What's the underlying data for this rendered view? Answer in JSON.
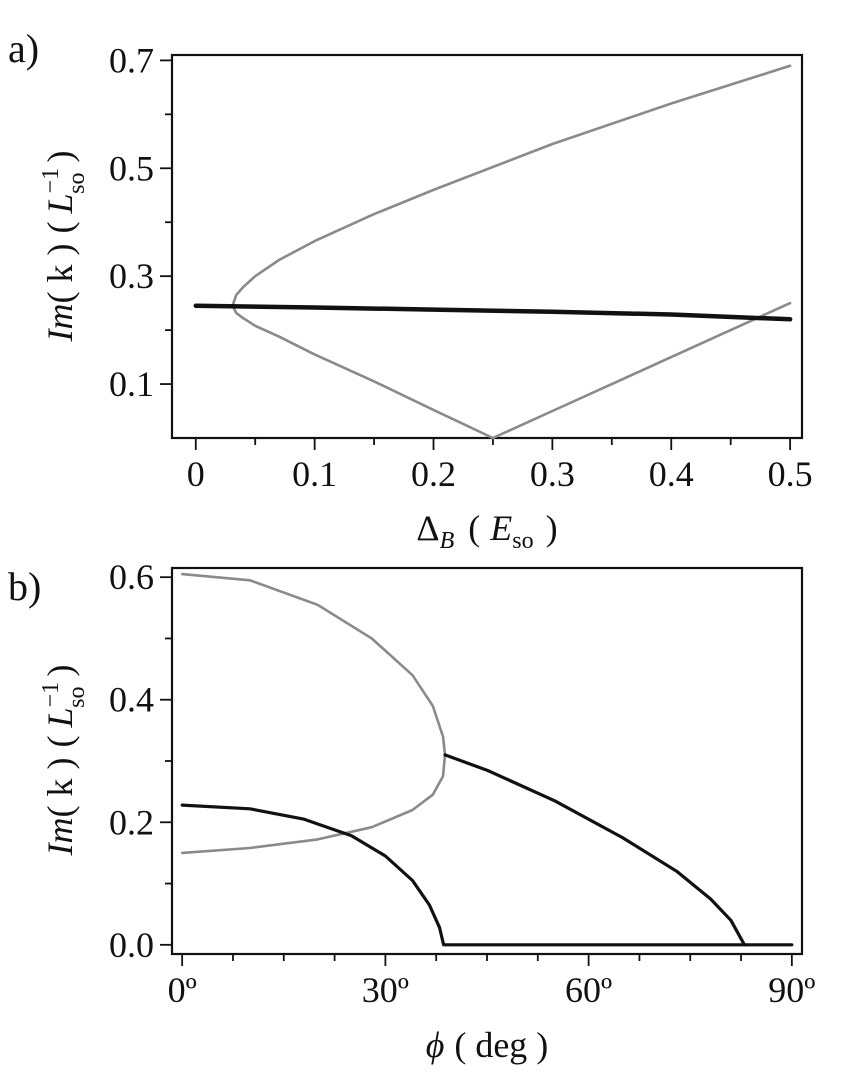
{
  "colors": {
    "gray_curve": "#8a8a8a",
    "black_curve": "#111111"
  },
  "chart_data": [
    {
      "type": "line",
      "panel_label": "a)",
      "xlabel": {
        "main": "Δ",
        "sub": "B",
        "paren_open": "(",
        "unit": "E",
        "unit_sub": "so",
        "paren_close": ")"
      },
      "ylabel": {
        "main": "Im",
        "arg": "( k )",
        "paren_open": "(",
        "unit": "L",
        "unit_sup": "−1",
        "unit_sub": "so",
        "paren_close": ")"
      },
      "xlim": [
        -0.02,
        0.51
      ],
      "ylim": [
        0.0,
        0.71
      ],
      "xticks": [
        0,
        0.1,
        0.2,
        0.3,
        0.4,
        0.5
      ],
      "xticklabels": [
        "0",
        "0.1",
        "0.2",
        "0.3",
        "0.4",
        "0.5"
      ],
      "xminor": [
        0.05,
        0.15,
        0.25,
        0.35,
        0.45
      ],
      "yticks": [
        0.1,
        0.3,
        0.5,
        0.7
      ],
      "yticklabels": [
        "0.1",
        "0.3",
        "0.5",
        "0.7"
      ],
      "yminor": [
        0.2,
        0.4,
        0.6
      ],
      "grid": false,
      "series": [
        {
          "color": "gray",
          "width": 2.6,
          "points": [
            [
              0.5,
              0.69
            ],
            [
              0.4,
              0.62
            ],
            [
              0.3,
              0.545
            ],
            [
              0.2,
              0.46
            ],
            [
              0.15,
              0.415
            ],
            [
              0.1,
              0.365
            ],
            [
              0.07,
              0.33
            ],
            [
              0.05,
              0.3
            ],
            [
              0.04,
              0.28
            ],
            [
              0.034,
              0.265
            ],
            [
              0.031,
              0.245
            ],
            [
              0.034,
              0.232
            ],
            [
              0.04,
              0.222
            ],
            [
              0.05,
              0.208
            ],
            [
              0.07,
              0.188
            ],
            [
              0.1,
              0.155
            ],
            [
              0.15,
              0.105
            ],
            [
              0.2,
              0.052
            ],
            [
              0.25,
              0.0
            ]
          ]
        },
        {
          "color": "gray",
          "width": 2.6,
          "points": [
            [
              0.25,
              0.0
            ],
            [
              0.3,
              0.05
            ],
            [
              0.35,
              0.1
            ],
            [
              0.4,
              0.15
            ],
            [
              0.45,
              0.2
            ],
            [
              0.5,
              0.25
            ]
          ]
        },
        {
          "color": "black",
          "width": 4.5,
          "points": [
            [
              0.0,
              0.245
            ],
            [
              0.1,
              0.242
            ],
            [
              0.2,
              0.238
            ],
            [
              0.3,
              0.234
            ],
            [
              0.4,
              0.229
            ],
            [
              0.5,
              0.22
            ]
          ]
        }
      ]
    },
    {
      "type": "line",
      "panel_label": "b)",
      "xlabel": {
        "main": "ϕ",
        "arg": "( deg )"
      },
      "ylabel": {
        "main": "Im",
        "arg": "( k )",
        "paren_open": "(",
        "unit": "L",
        "unit_sup": "−1",
        "unit_sub": "so",
        "paren_close": ")"
      },
      "xlim": [
        -1.5,
        91.5
      ],
      "ylim": [
        -0.015,
        0.615
      ],
      "xticks": [
        0,
        30,
        60,
        90
      ],
      "xticklabels": [
        "0º",
        "30º",
        "60º",
        "90º"
      ],
      "xminor": [
        7.5,
        15,
        22.5,
        37.5,
        45,
        52.5,
        67.5,
        75,
        82.5
      ],
      "yticks": [
        0.0,
        0.2,
        0.4,
        0.6
      ],
      "yticklabels": [
        "0.0",
        "0.2",
        "0.4",
        "0.6"
      ],
      "yminor": [
        0.1,
        0.3,
        0.5
      ],
      "grid": false,
      "series": [
        {
          "color": "gray",
          "width": 2.6,
          "points": [
            [
              0,
              0.605
            ],
            [
              10,
              0.595
            ],
            [
              20,
              0.555
            ],
            [
              28,
              0.5
            ],
            [
              34,
              0.44
            ],
            [
              37,
              0.39
            ],
            [
              38.5,
              0.34
            ],
            [
              38.8,
              0.31
            ],
            [
              38.5,
              0.275
            ],
            [
              37,
              0.245
            ],
            [
              34,
              0.22
            ],
            [
              28,
              0.192
            ],
            [
              20,
              0.172
            ],
            [
              10,
              0.158
            ],
            [
              0,
              0.15
            ]
          ]
        },
        {
          "color": "black",
          "width": 3.2,
          "points": [
            [
              0,
              0.228
            ],
            [
              10,
              0.222
            ],
            [
              18,
              0.205
            ],
            [
              25,
              0.178
            ],
            [
              30,
              0.145
            ],
            [
              34,
              0.105
            ],
            [
              36.5,
              0.065
            ],
            [
              38,
              0.028
            ],
            [
              38.6,
              0.0
            ],
            [
              90,
              0.0
            ]
          ]
        },
        {
          "color": "black",
          "width": 3.2,
          "points": [
            [
              38.8,
              0.31
            ],
            [
              45,
              0.285
            ],
            [
              55,
              0.235
            ],
            [
              65,
              0.175
            ],
            [
              73,
              0.12
            ],
            [
              78,
              0.075
            ],
            [
              81,
              0.04
            ],
            [
              83,
              0.0
            ]
          ]
        }
      ]
    }
  ]
}
